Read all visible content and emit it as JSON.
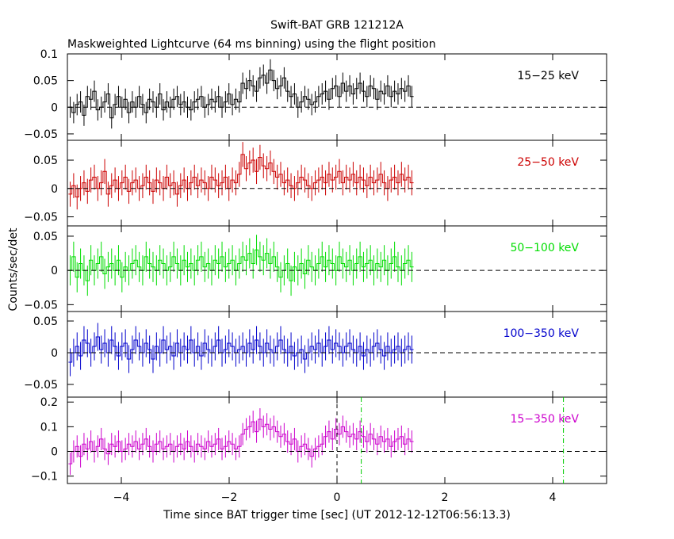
{
  "figure": {
    "title": "Swift-BAT GRB 121212A",
    "subtitle": "Maskweighted Lightcurve (64 ms binning) using the flight position",
    "xlabel": "Time since BAT trigger time [sec] (UT 2012-12-12T06:56:13.3)",
    "ylabel": "Counts/sec/det",
    "colors": {
      "axes": "#000000",
      "zero_line": "#000000",
      "marker_line": "#00cc00",
      "trigger_line": "#000000"
    }
  },
  "chart_data": {
    "type": "line",
    "style": "histogram step with error bars",
    "x_range": [
      -5,
      5
    ],
    "x_ticks": [
      -4,
      -2,
      0,
      2,
      4
    ],
    "x_tick_labels": [
      "−4",
      "−2",
      "0",
      "2",
      "4"
    ],
    "bin_width": 0.064,
    "panels": [
      {
        "name": "15-25keV",
        "label": "15−25 keV",
        "color": "#000000",
        "ylim": [
          -0.062,
          0.1
        ],
        "yticks": [
          -0.05,
          0,
          0.05,
          0.1
        ],
        "ytick_labels": [
          "−0.05",
          "0",
          "0.05",
          "0.1"
        ],
        "yerr": 0.02,
        "values": [
          0.0,
          -0.01,
          0.005,
          0.01,
          -0.015,
          0.02,
          0.015,
          0.03,
          -0.005,
          0.0,
          0.01,
          0.025,
          -0.02,
          0.005,
          0.02,
          0.0,
          0.015,
          -0.01,
          0.01,
          0.0,
          0.02,
          0.005,
          -0.01,
          0.015,
          0.01,
          0.0,
          0.025,
          -0.005,
          0.01,
          0.0,
          0.015,
          0.02,
          0.005,
          0.01,
          0.0,
          -0.005,
          0.01,
          0.015,
          0.02,
          0.0,
          0.005,
          0.015,
          0.01,
          0.02,
          0.0,
          0.01,
          0.025,
          0.005,
          0.015,
          0.01,
          0.045,
          0.035,
          0.05,
          0.04,
          0.03,
          0.055,
          0.06,
          0.045,
          0.07,
          0.05,
          0.035,
          0.04,
          0.055,
          0.03,
          0.02,
          0.025,
          0.0,
          0.01,
          0.02,
          0.015,
          0.005,
          0.01,
          0.02,
          0.025,
          0.03,
          0.015,
          0.035,
          0.04,
          0.02,
          0.045,
          0.03,
          0.04,
          0.025,
          0.035,
          0.045,
          0.03,
          0.02,
          0.04,
          0.035,
          0.015,
          0.03,
          0.025,
          0.04,
          0.02,
          0.03,
          0.025,
          0.035,
          0.03,
          0.04,
          0.02
        ]
      },
      {
        "name": "25-50keV",
        "label": "25−50 keV",
        "color": "#cc0000",
        "ylim": [
          -0.066,
          0.085
        ],
        "yticks": [
          -0.05,
          0,
          0.05
        ],
        "ytick_labels": [
          "−0.05",
          "0",
          "0.05"
        ],
        "yerr": 0.022,
        "values": [
          -0.01,
          0.005,
          -0.015,
          0.0,
          0.01,
          -0.005,
          0.015,
          0.02,
          0.0,
          0.01,
          0.03,
          -0.01,
          0.005,
          0.015,
          0.0,
          0.01,
          0.02,
          -0.005,
          0.01,
          0.015,
          0.0,
          0.005,
          0.02,
          0.01,
          -0.005,
          0.015,
          0.01,
          0.0,
          0.02,
          0.005,
          0.01,
          -0.01,
          0.005,
          0.015,
          0.0,
          0.01,
          0.02,
          0.005,
          0.015,
          0.01,
          0.0,
          0.02,
          0.015,
          0.005,
          0.01,
          0.02,
          0.0,
          0.015,
          0.01,
          0.025,
          0.06,
          0.035,
          0.045,
          0.05,
          0.03,
          0.055,
          0.04,
          0.035,
          0.045,
          0.03,
          0.02,
          0.025,
          0.01,
          0.015,
          0.005,
          0.0,
          0.01,
          0.02,
          0.015,
          0.005,
          0.0,
          0.01,
          0.015,
          0.02,
          0.01,
          0.025,
          0.015,
          0.02,
          0.03,
          0.01,
          0.02,
          0.015,
          0.025,
          0.01,
          0.02,
          0.015,
          0.005,
          0.02,
          0.01,
          0.015,
          0.025,
          0.01,
          0.0,
          0.015,
          0.02,
          0.01,
          0.025,
          0.015,
          0.02,
          0.01
        ]
      },
      {
        "name": "50-100keV",
        "label": "50−100 keV",
        "color": "#00dd00",
        "ylim": [
          -0.06,
          0.065
        ],
        "yticks": [
          -0.05,
          0,
          0.05
        ],
        "ytick_labels": [
          "−0.05",
          "0",
          "0.05"
        ],
        "yerr": 0.022,
        "values": [
          0.0,
          0.02,
          -0.01,
          0.01,
          0.0,
          -0.015,
          0.015,
          0.0,
          0.01,
          0.02,
          -0.005,
          0.005,
          0.01,
          0.0,
          0.015,
          -0.01,
          0.005,
          0.0,
          0.01,
          0.015,
          0.005,
          0.0,
          0.02,
          0.01,
          0.005,
          0.0,
          0.015,
          0.01,
          0.0,
          0.005,
          0.02,
          0.01,
          0.0,
          0.015,
          0.005,
          0.01,
          0.0,
          0.015,
          0.02,
          0.005,
          0.01,
          0.0,
          0.015,
          0.01,
          0.02,
          0.005,
          0.01,
          0.015,
          0.0,
          0.01,
          0.02,
          0.015,
          0.025,
          0.01,
          0.03,
          0.02,
          0.015,
          0.025,
          0.01,
          0.02,
          0.005,
          -0.01,
          0.0,
          0.01,
          -0.015,
          0.005,
          0.0,
          0.01,
          -0.005,
          0.015,
          0.005,
          0.0,
          0.01,
          0.02,
          0.005,
          0.015,
          0.01,
          0.0,
          0.02,
          0.01,
          0.005,
          0.015,
          0.0,
          0.01,
          0.02,
          0.005,
          0.01,
          0.015,
          0.0,
          0.01,
          0.005,
          0.015,
          0.0,
          0.01,
          0.02,
          0.005,
          0.0,
          0.01,
          0.015,
          0.005
        ]
      },
      {
        "name": "100-350keV",
        "label": "100−350 keV",
        "color": "#0000cc",
        "ylim": [
          -0.07,
          0.065
        ],
        "yticks": [
          -0.05,
          0,
          0.05
        ],
        "ytick_labels": [
          "−0.05",
          "0",
          "0.05"
        ],
        "yerr": 0.022,
        "values": [
          -0.015,
          0.0,
          0.01,
          -0.005,
          0.02,
          0.015,
          0.0,
          0.01,
          0.025,
          0.005,
          0.015,
          0.0,
          0.02,
          0.01,
          -0.005,
          0.01,
          0.015,
          -0.01,
          0.005,
          0.02,
          0.01,
          0.0,
          0.015,
          0.005,
          -0.01,
          0.01,
          0.0,
          0.02,
          0.005,
          0.01,
          -0.005,
          0.015,
          0.0,
          0.01,
          0.005,
          0.02,
          0.0,
          0.01,
          -0.005,
          0.015,
          0.005,
          0.0,
          0.01,
          0.02,
          0.0,
          0.005,
          0.015,
          0.01,
          0.0,
          0.005,
          0.01,
          0.0,
          0.015,
          0.005,
          0.02,
          0.01,
          0.0,
          0.015,
          0.005,
          0.0,
          0.01,
          0.02,
          0.005,
          0.0,
          0.01,
          -0.005,
          0.0,
          0.005,
          -0.01,
          0.0,
          0.01,
          0.005,
          0.015,
          0.0,
          0.01,
          0.02,
          0.005,
          0.015,
          0.01,
          0.0,
          0.01,
          0.015,
          0.005,
          0.0,
          0.01,
          -0.005,
          0.005,
          0.0,
          0.01,
          0.015,
          0.005,
          -0.005,
          0.01,
          0.0,
          0.005,
          0.01,
          0.0,
          0.005,
          0.01,
          0.005
        ]
      },
      {
        "name": "15-350keV",
        "label": "15−350 keV",
        "color": "#cc00cc",
        "ylim": [
          -0.13,
          0.22
        ],
        "yticks": [
          -0.1,
          0,
          0.1,
          0.2
        ],
        "ytick_labels": [
          "−0.1",
          "0",
          "0.1",
          "0.2"
        ],
        "yerr": 0.045,
        "values": [
          -0.05,
          0.0,
          0.02,
          -0.02,
          0.03,
          0.01,
          0.04,
          0.0,
          0.02,
          0.05,
          0.01,
          -0.01,
          0.03,
          0.02,
          0.04,
          0.0,
          0.01,
          0.03,
          0.02,
          0.04,
          0.01,
          0.03,
          0.05,
          0.02,
          0.0,
          0.03,
          0.04,
          0.01,
          0.02,
          0.03,
          0.0,
          0.02,
          0.03,
          0.01,
          0.04,
          0.02,
          0.0,
          0.03,
          0.02,
          0.01,
          0.04,
          0.02,
          0.03,
          0.05,
          0.01,
          0.02,
          0.04,
          0.03,
          0.01,
          0.02,
          0.07,
          0.09,
          0.1,
          0.12,
          0.08,
          0.13,
          0.1,
          0.11,
          0.09,
          0.1,
          0.08,
          0.06,
          0.07,
          0.04,
          0.03,
          0.05,
          0.0,
          0.02,
          0.03,
          0.01,
          -0.02,
          0.01,
          0.02,
          0.03,
          0.06,
          0.08,
          0.05,
          0.09,
          0.07,
          0.1,
          0.08,
          0.06,
          0.07,
          0.05,
          0.08,
          0.06,
          0.04,
          0.07,
          0.05,
          0.03,
          0.06,
          0.04,
          0.05,
          0.02,
          0.04,
          0.05,
          0.06,
          0.03,
          0.05,
          0.04
        ]
      }
    ],
    "vertical_markers": [
      {
        "x": 0.0,
        "style": "dash",
        "color": "#000000",
        "panel": "15-350keV"
      },
      {
        "x": 0.45,
        "style": "dashdot",
        "color": "#00cc00",
        "panel": "15-350keV"
      },
      {
        "x": 4.2,
        "style": "dashdot",
        "color": "#00cc00",
        "panel": "15-350keV"
      }
    ]
  }
}
